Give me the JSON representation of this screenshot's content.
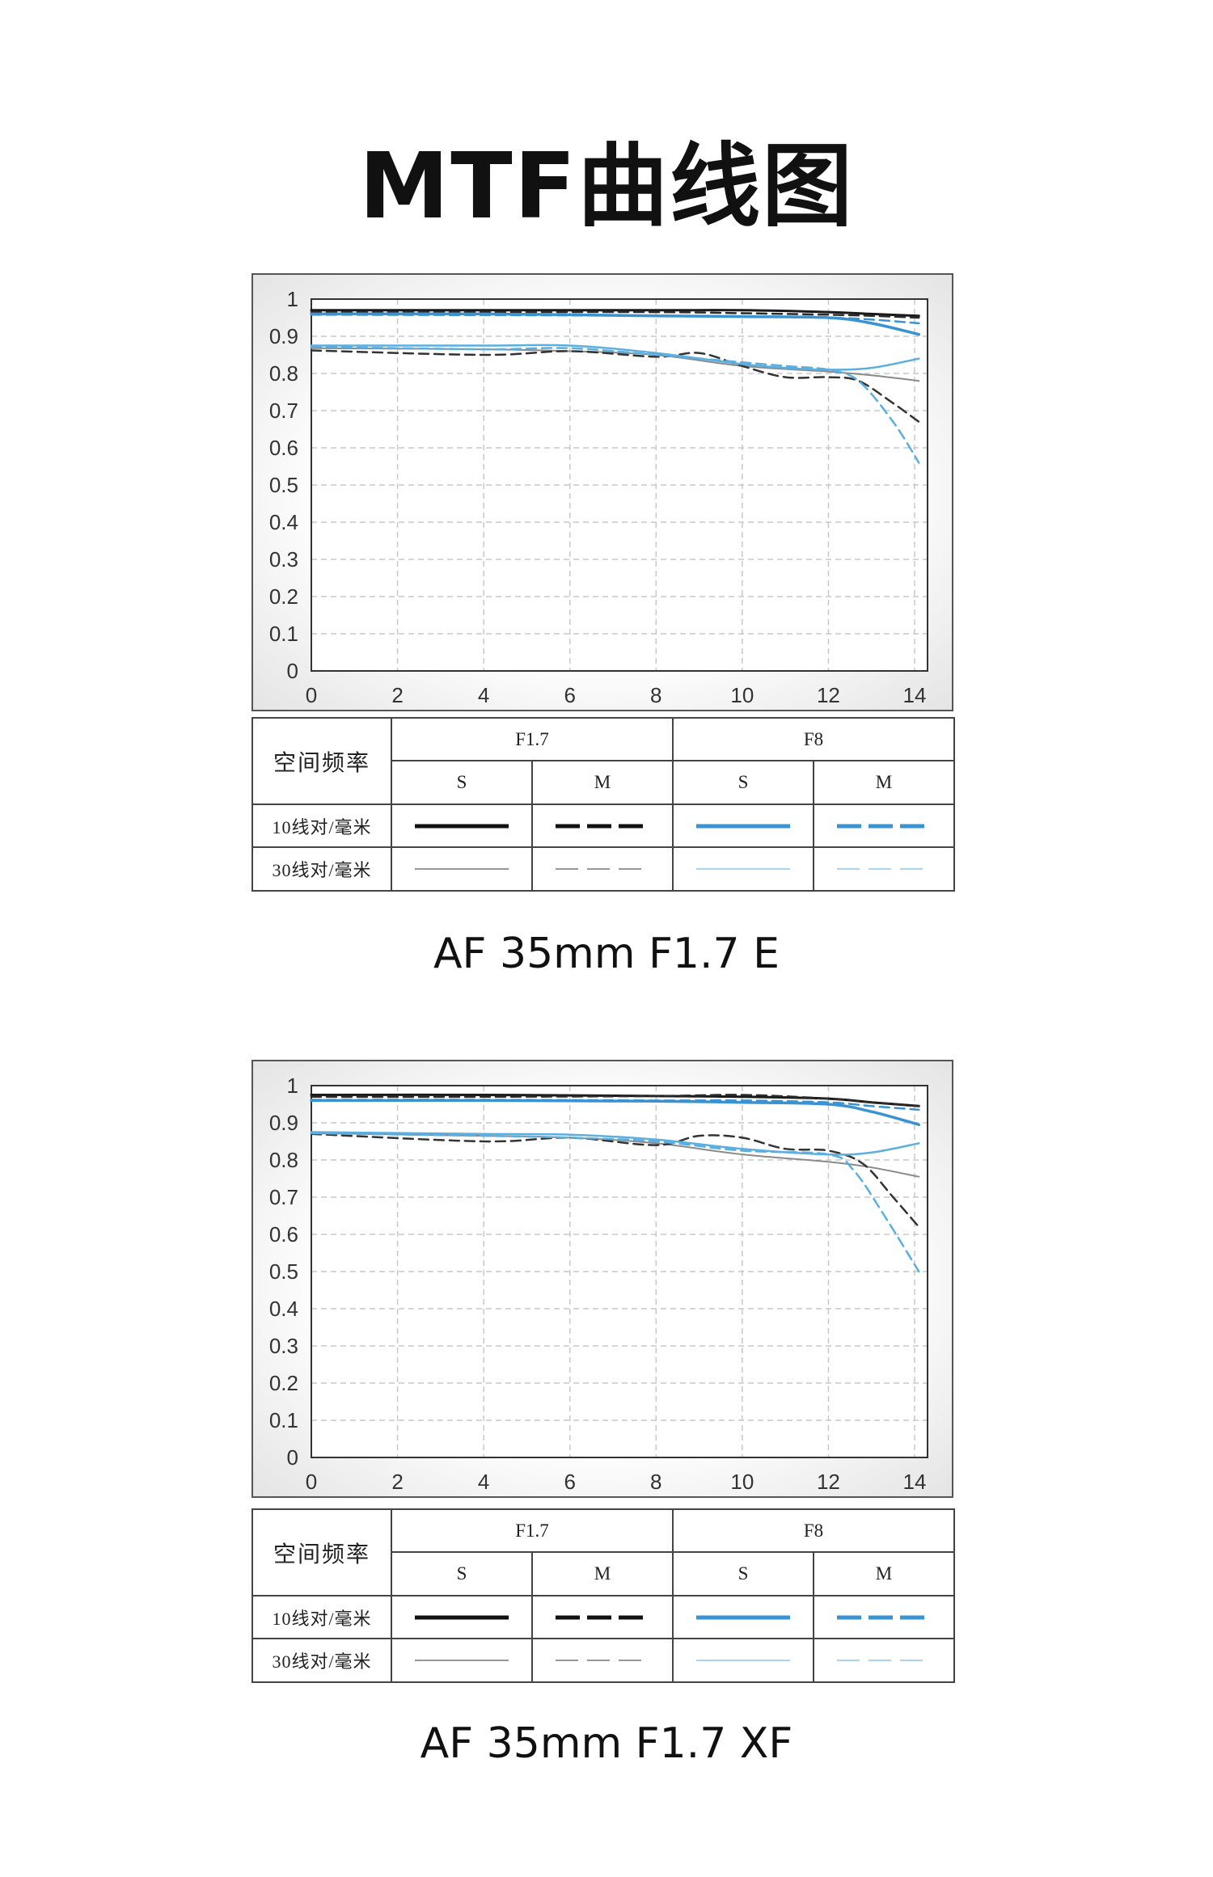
{
  "page": {
    "title": "MTF曲线图"
  },
  "colors": {
    "f17_10": "#1a1a1a",
    "f17_30": "#8a8a8a",
    "f8_10": "#3a93d1",
    "f8_30": "#8fc6e8",
    "f17_m10": "#2a2a2a",
    "f17_m30": "#7a7a7a"
  },
  "legend": {
    "freq_label": "空间频率",
    "aperture_a": "F1.7",
    "aperture_b": "F8",
    "s_label": "S",
    "m_label": "M",
    "row_10": "10线对/毫米",
    "row_30": "30线对/毫米"
  },
  "charts": [
    {
      "caption": "AF 35mm F1.7 E"
    },
    {
      "caption": "AF 35mm F1.7 XF"
    }
  ],
  "chart_data": [
    {
      "type": "line",
      "xlim": [
        0,
        14.3
      ],
      "ylim": [
        0,
        1
      ],
      "x_ticks": [
        0,
        2,
        4,
        6,
        8,
        10,
        12,
        14
      ],
      "y_ticks": [
        "0",
        "0.1",
        "0.2",
        "0.3",
        "0.4",
        "0.5",
        "0.6",
        "0.7",
        "0.8",
        "0.9",
        "1"
      ],
      "grid": true,
      "series": [
        {
          "name": "F1.7 S 10",
          "color": "#1a1a1a",
          "dash": "",
          "width": 3,
          "x": [
            0,
            4,
            8,
            10,
            12,
            13,
            14.1
          ],
          "y": [
            0.97,
            0.97,
            0.97,
            0.97,
            0.965,
            0.96,
            0.955
          ]
        },
        {
          "name": "F1.7 M 10",
          "color": "#2a2a2a",
          "dash": "12 7",
          "width": 2.5,
          "x": [
            0,
            4,
            8,
            10,
            12,
            13,
            14.1
          ],
          "y": [
            0.965,
            0.965,
            0.965,
            0.962,
            0.958,
            0.955,
            0.95
          ]
        },
        {
          "name": "F8 S 10",
          "color": "#3a93d1",
          "dash": "",
          "width": 3.5,
          "x": [
            0,
            4,
            8,
            10,
            12,
            13,
            14.1
          ],
          "y": [
            0.96,
            0.96,
            0.955,
            0.953,
            0.95,
            0.935,
            0.905
          ]
        },
        {
          "name": "F8 M 10",
          "color": "#3a93d1",
          "dash": "12 7",
          "width": 2.5,
          "x": [
            0,
            4,
            8,
            10,
            12,
            13,
            14.1
          ],
          "y": [
            0.958,
            0.957,
            0.955,
            0.953,
            0.95,
            0.945,
            0.935
          ]
        },
        {
          "name": "F1.7 S 30",
          "color": "#8a8a8a",
          "dash": "",
          "width": 2,
          "x": [
            0,
            4,
            6,
            8,
            10,
            12,
            13,
            14.1
          ],
          "y": [
            0.868,
            0.865,
            0.86,
            0.85,
            0.82,
            0.805,
            0.795,
            0.78
          ]
        },
        {
          "name": "F1.7 M 30",
          "color": "#333333",
          "dash": "12 7",
          "width": 2.5,
          "x": [
            0,
            4,
            6,
            8,
            9,
            10,
            11,
            12,
            12.7,
            13.5,
            14.1
          ],
          "y": [
            0.862,
            0.85,
            0.86,
            0.845,
            0.855,
            0.82,
            0.79,
            0.79,
            0.78,
            0.72,
            0.67
          ]
        },
        {
          "name": "F8 S 30",
          "color": "#5aaee0",
          "dash": "",
          "width": 2.5,
          "x": [
            0,
            4,
            6,
            8,
            10,
            11,
            12,
            13,
            14.1
          ],
          "y": [
            0.875,
            0.875,
            0.875,
            0.855,
            0.825,
            0.815,
            0.81,
            0.815,
            0.84
          ]
        },
        {
          "name": "F8 M 30",
          "color": "#5aaee0",
          "dash": "12 7",
          "width": 2.5,
          "x": [
            0,
            4,
            6,
            8,
            10,
            11,
            12,
            12.7,
            13.5,
            14.1
          ],
          "y": [
            0.872,
            0.865,
            0.868,
            0.85,
            0.83,
            0.82,
            0.81,
            0.78,
            0.67,
            0.56
          ]
        }
      ]
    },
    {
      "type": "line",
      "xlim": [
        0,
        14.3
      ],
      "ylim": [
        0,
        1
      ],
      "x_ticks": [
        0,
        2,
        4,
        6,
        8,
        10,
        12,
        14
      ],
      "y_ticks": [
        "0",
        "0.1",
        "0.2",
        "0.3",
        "0.4",
        "0.5",
        "0.6",
        "0.7",
        "0.8",
        "0.9",
        "1"
      ],
      "grid": true,
      "series": [
        {
          "name": "F1.7 S 10",
          "color": "#1a1a1a",
          "dash": "",
          "width": 3,
          "x": [
            0,
            4,
            8,
            10,
            12,
            13,
            14.1
          ],
          "y": [
            0.975,
            0.975,
            0.972,
            0.97,
            0.965,
            0.955,
            0.945
          ]
        },
        {
          "name": "F1.7 M 10",
          "color": "#2a2a2a",
          "dash": "12 7",
          "width": 2.5,
          "x": [
            0,
            4,
            8,
            10,
            12,
            13,
            14.1
          ],
          "y": [
            0.97,
            0.97,
            0.972,
            0.975,
            0.965,
            0.955,
            0.945
          ]
        },
        {
          "name": "F8 S 10",
          "color": "#3a93d1",
          "dash": "",
          "width": 3.5,
          "x": [
            0,
            4,
            8,
            10,
            12,
            13,
            14.1
          ],
          "y": [
            0.96,
            0.96,
            0.958,
            0.955,
            0.95,
            0.93,
            0.895
          ]
        },
        {
          "name": "F8 M 10",
          "color": "#3a93d1",
          "dash": "12 7",
          "width": 2.5,
          "x": [
            0,
            4,
            8,
            10,
            12,
            13,
            14.1
          ],
          "y": [
            0.962,
            0.962,
            0.96,
            0.96,
            0.955,
            0.945,
            0.935
          ]
        },
        {
          "name": "F1.7 S 30",
          "color": "#8a8a8a",
          "dash": "",
          "width": 2,
          "x": [
            0,
            4,
            6,
            8,
            10,
            12,
            13,
            14.1
          ],
          "y": [
            0.872,
            0.865,
            0.86,
            0.845,
            0.815,
            0.795,
            0.78,
            0.755
          ]
        },
        {
          "name": "F1.7 M 30",
          "color": "#333333",
          "dash": "12 7",
          "width": 2.5,
          "x": [
            0,
            4,
            6,
            8,
            9,
            10,
            11,
            12,
            12.8,
            13.5,
            14.1
          ],
          "y": [
            0.87,
            0.85,
            0.86,
            0.84,
            0.865,
            0.86,
            0.83,
            0.825,
            0.79,
            0.7,
            0.62
          ]
        },
        {
          "name": "F8 S 30",
          "color": "#5aaee0",
          "dash": "",
          "width": 2.5,
          "x": [
            0,
            4,
            6,
            8,
            10,
            12,
            13,
            14.1
          ],
          "y": [
            0.875,
            0.87,
            0.868,
            0.855,
            0.83,
            0.815,
            0.82,
            0.845
          ]
        },
        {
          "name": "F8 M 30",
          "color": "#5aaee0",
          "dash": "12 7",
          "width": 2.5,
          "x": [
            0,
            4,
            6,
            8,
            10,
            12,
            12.6,
            13.3,
            14.1
          ],
          "y": [
            0.872,
            0.865,
            0.86,
            0.85,
            0.825,
            0.815,
            0.77,
            0.65,
            0.5
          ]
        }
      ]
    }
  ]
}
